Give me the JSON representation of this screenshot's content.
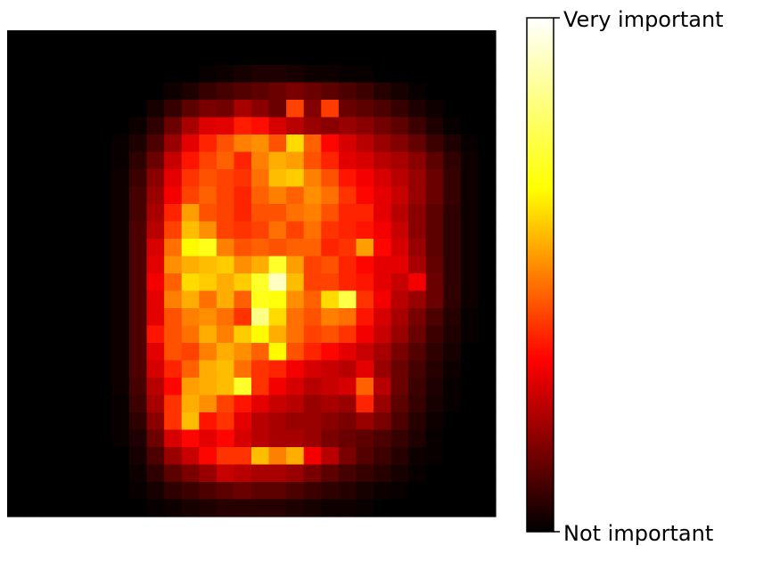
{
  "chart_data": {
    "type": "heatmap",
    "title": "",
    "xlabel": "",
    "ylabel": "",
    "grid": false,
    "colormap": "hot",
    "colormap_stops": [
      "#000000",
      "#ff0000",
      "#ffff00",
      "#ffffff"
    ],
    "vlim": [
      0,
      1
    ],
    "rows": 28,
    "cols": 28,
    "values": [
      [
        0,
        0,
        0,
        0,
        0,
        0,
        0,
        0,
        0,
        0,
        0,
        0,
        0,
        0,
        0,
        0,
        0,
        0,
        0,
        0,
        0,
        0,
        0,
        0,
        0,
        0,
        0,
        0
      ],
      [
        0,
        0,
        0,
        0,
        0,
        0,
        0,
        0,
        0,
        0,
        0,
        0,
        0,
        0,
        0,
        0,
        0,
        0,
        0,
        0,
        0,
        0,
        0,
        0,
        0,
        0,
        0,
        0
      ],
      [
        0,
        0,
        0,
        0,
        0,
        0,
        0,
        0,
        0,
        0,
        0,
        0.01,
        0.02,
        0.03,
        0.04,
        0.04,
        0.03,
        0.02,
        0.02,
        0.01,
        0.01,
        0,
        0,
        0,
        0,
        0,
        0,
        0
      ],
      [
        0,
        0,
        0,
        0,
        0,
        0,
        0,
        0,
        0,
        0.02,
        0.04,
        0.07,
        0.09,
        0.11,
        0.12,
        0.14,
        0.16,
        0.14,
        0.12,
        0.1,
        0.08,
        0.05,
        0.03,
        0.01,
        0,
        0,
        0,
        0
      ],
      [
        0,
        0,
        0,
        0,
        0,
        0,
        0,
        0,
        0.03,
        0.07,
        0.12,
        0.16,
        0.15,
        0.22,
        0.18,
        0.14,
        0.42,
        0.17,
        0.41,
        0.14,
        0.12,
        0.1,
        0.07,
        0.04,
        0.02,
        0,
        0,
        0
      ],
      [
        0,
        0,
        0,
        0,
        0,
        0,
        0,
        0.02,
        0.06,
        0.14,
        0.22,
        0.29,
        0.3,
        0.37,
        0.35,
        0.28,
        0.24,
        0.2,
        0.18,
        0.2,
        0.18,
        0.15,
        0.12,
        0.08,
        0.04,
        0.01,
        0,
        0
      ],
      [
        0,
        0,
        0,
        0,
        0,
        0,
        0.01,
        0.04,
        0.1,
        0.2,
        0.3,
        0.38,
        0.44,
        0.5,
        0.52,
        0.44,
        0.62,
        0.46,
        0.34,
        0.28,
        0.24,
        0.2,
        0.17,
        0.13,
        0.08,
        0.04,
        0.01,
        0
      ],
      [
        0,
        0,
        0,
        0,
        0,
        0,
        0.01,
        0.06,
        0.14,
        0.26,
        0.36,
        0.42,
        0.46,
        0.38,
        0.5,
        0.56,
        0.54,
        0.44,
        0.38,
        0.3,
        0.28,
        0.24,
        0.22,
        0.18,
        0.12,
        0.06,
        0.02,
        0
      ],
      [
        0,
        0,
        0,
        0,
        0,
        0,
        0.02,
        0.08,
        0.18,
        0.3,
        0.4,
        0.44,
        0.42,
        0.4,
        0.48,
        0.58,
        0.6,
        0.5,
        0.44,
        0.36,
        0.32,
        0.28,
        0.24,
        0.2,
        0.14,
        0.07,
        0.02,
        0
      ],
      [
        0,
        0,
        0,
        0,
        0,
        0,
        0.02,
        0.09,
        0.2,
        0.32,
        0.42,
        0.46,
        0.42,
        0.38,
        0.46,
        0.5,
        0.46,
        0.52,
        0.48,
        0.4,
        0.34,
        0.3,
        0.26,
        0.2,
        0.14,
        0.07,
        0.02,
        0
      ],
      [
        0,
        0,
        0,
        0,
        0,
        0,
        0.02,
        0.09,
        0.22,
        0.38,
        0.54,
        0.44,
        0.42,
        0.38,
        0.44,
        0.44,
        0.48,
        0.5,
        0.44,
        0.38,
        0.38,
        0.3,
        0.24,
        0.18,
        0.12,
        0.06,
        0.02,
        0
      ],
      [
        0,
        0,
        0,
        0,
        0,
        0,
        0.02,
        0.1,
        0.24,
        0.42,
        0.58,
        0.52,
        0.42,
        0.4,
        0.42,
        0.48,
        0.42,
        0.48,
        0.4,
        0.38,
        0.36,
        0.32,
        0.26,
        0.18,
        0.12,
        0.06,
        0.02,
        0
      ],
      [
        0,
        0,
        0,
        0,
        0,
        0,
        0.02,
        0.1,
        0.28,
        0.48,
        0.66,
        0.7,
        0.5,
        0.44,
        0.46,
        0.44,
        0.46,
        0.46,
        0.38,
        0.4,
        0.54,
        0.34,
        0.28,
        0.2,
        0.12,
        0.06,
        0.02,
        0
      ],
      [
        0,
        0,
        0,
        0,
        0,
        0,
        0.02,
        0.1,
        0.3,
        0.52,
        0.56,
        0.58,
        0.6,
        0.52,
        0.56,
        0.72,
        0.54,
        0.42,
        0.44,
        0.38,
        0.34,
        0.3,
        0.3,
        0.22,
        0.13,
        0.06,
        0.02,
        0
      ],
      [
        0,
        0,
        0,
        0,
        0,
        0,
        0.02,
        0.1,
        0.32,
        0.46,
        0.62,
        0.6,
        0.56,
        0.6,
        0.72,
        0.92,
        0.58,
        0.42,
        0.42,
        0.38,
        0.36,
        0.3,
        0.26,
        0.32,
        0.14,
        0.06,
        0.02,
        0
      ],
      [
        0,
        0,
        0,
        0,
        0,
        0,
        0.02,
        0.1,
        0.3,
        0.5,
        0.56,
        0.48,
        0.56,
        0.46,
        0.7,
        0.68,
        0.52,
        0.46,
        0.62,
        0.76,
        0.4,
        0.32,
        0.24,
        0.2,
        0.14,
        0.06,
        0.02,
        0
      ],
      [
        0,
        0,
        0,
        0,
        0,
        0,
        0.02,
        0.1,
        0.3,
        0.44,
        0.5,
        0.52,
        0.48,
        0.4,
        0.84,
        0.62,
        0.48,
        0.44,
        0.5,
        0.48,
        0.36,
        0.28,
        0.22,
        0.16,
        0.1,
        0.05,
        0.01,
        0
      ],
      [
        0,
        0,
        0,
        0,
        0,
        0,
        0.02,
        0.1,
        0.36,
        0.44,
        0.48,
        0.56,
        0.5,
        0.6,
        0.66,
        0.56,
        0.48,
        0.42,
        0.44,
        0.4,
        0.32,
        0.26,
        0.2,
        0.14,
        0.08,
        0.04,
        0.01,
        0
      ],
      [
        0,
        0,
        0,
        0,
        0,
        0,
        0.02,
        0.1,
        0.3,
        0.44,
        0.42,
        0.5,
        0.56,
        0.52,
        0.46,
        0.66,
        0.44,
        0.38,
        0.34,
        0.3,
        0.26,
        0.22,
        0.16,
        0.11,
        0.06,
        0.03,
        0,
        0
      ],
      [
        0,
        0,
        0,
        0,
        0,
        0,
        0.02,
        0.1,
        0.28,
        0.38,
        0.46,
        0.56,
        0.58,
        0.48,
        0.4,
        0.38,
        0.32,
        0.28,
        0.26,
        0.24,
        0.3,
        0.2,
        0.14,
        0.09,
        0.05,
        0.02,
        0,
        0
      ],
      [
        0,
        0,
        0,
        0,
        0,
        0,
        0.02,
        0.09,
        0.24,
        0.34,
        0.54,
        0.56,
        0.58,
        0.72,
        0.4,
        0.32,
        0.28,
        0.24,
        0.26,
        0.28,
        0.46,
        0.24,
        0.14,
        0.08,
        0.04,
        0.01,
        0,
        0
      ],
      [
        0,
        0,
        0,
        0,
        0,
        0,
        0.01,
        0.08,
        0.22,
        0.4,
        0.56,
        0.52,
        0.42,
        0.36,
        0.3,
        0.26,
        0.24,
        0.2,
        0.22,
        0.2,
        0.38,
        0.2,
        0.12,
        0.07,
        0.03,
        0.01,
        0,
        0
      ],
      [
        0,
        0,
        0,
        0,
        0,
        0,
        0.01,
        0.06,
        0.18,
        0.4,
        0.58,
        0.36,
        0.4,
        0.3,
        0.24,
        0.22,
        0.2,
        0.2,
        0.18,
        0.16,
        0.2,
        0.16,
        0.1,
        0.05,
        0.02,
        0,
        0,
        0
      ],
      [
        0,
        0,
        0,
        0,
        0,
        0,
        0.01,
        0.04,
        0.14,
        0.28,
        0.34,
        0.3,
        0.34,
        0.28,
        0.24,
        0.22,
        0.22,
        0.2,
        0.16,
        0.14,
        0.12,
        0.1,
        0.07,
        0.04,
        0.01,
        0,
        0,
        0
      ],
      [
        0,
        0,
        0,
        0,
        0,
        0,
        0,
        0.03,
        0.1,
        0.2,
        0.26,
        0.34,
        0.4,
        0.4,
        0.58,
        0.5,
        0.56,
        0.32,
        0.24,
        0.16,
        0.11,
        0.08,
        0.05,
        0.02,
        0.01,
        0,
        0,
        0
      ],
      [
        0,
        0,
        0,
        0,
        0,
        0,
        0,
        0.02,
        0.06,
        0.12,
        0.16,
        0.2,
        0.26,
        0.24,
        0.22,
        0.22,
        0.2,
        0.16,
        0.12,
        0.09,
        0.07,
        0.05,
        0.03,
        0.01,
        0,
        0,
        0,
        0
      ],
      [
        0,
        0,
        0,
        0,
        0,
        0,
        0,
        0.01,
        0.03,
        0.06,
        0.08,
        0.1,
        0.12,
        0.14,
        0.12,
        0.12,
        0.1,
        0.08,
        0.06,
        0.05,
        0.03,
        0.02,
        0.01,
        0,
        0,
        0,
        0,
        0
      ],
      [
        0,
        0,
        0,
        0,
        0,
        0,
        0,
        0,
        0.01,
        0.02,
        0.03,
        0.04,
        0.05,
        0.05,
        0.05,
        0.05,
        0.04,
        0.03,
        0.02,
        0.02,
        0.01,
        0,
        0,
        0,
        0,
        0,
        0,
        0
      ]
    ],
    "colorbar": {
      "top_label": "Very important",
      "bottom_label": "Not important"
    }
  }
}
